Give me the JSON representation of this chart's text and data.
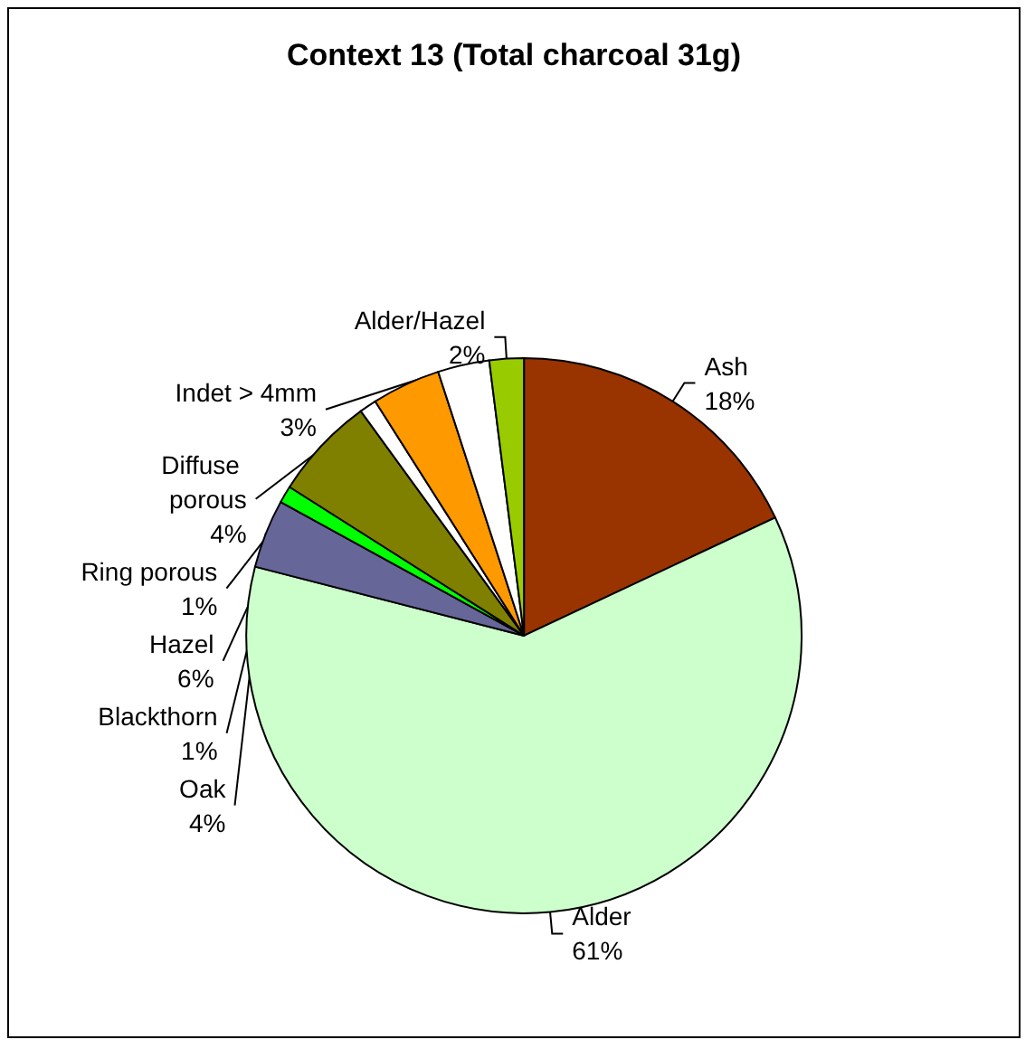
{
  "chart_data": {
    "type": "pie",
    "title": "Context 13 (Total charcoal 31g)",
    "categories": [
      "Ash",
      "Alder",
      "Oak",
      "Blackthorn",
      "Hazel",
      "Ring porous",
      "Diffuse porous",
      "Indet > 4mm",
      "Alder/Hazel"
    ],
    "values": [
      18,
      61,
      4,
      1,
      6,
      1,
      4,
      3,
      2
    ],
    "colors": [
      "#993300",
      "#ccffcc",
      "#666699",
      "#00ff00",
      "#808000",
      "#ffffff",
      "#ff9900",
      "#ffffff",
      "#99cc00"
    ],
    "value_labels": [
      "18%",
      "61%",
      "4%",
      "1%",
      "6%",
      "1%",
      "4%",
      "3%",
      "2%"
    ],
    "legend": false
  }
}
